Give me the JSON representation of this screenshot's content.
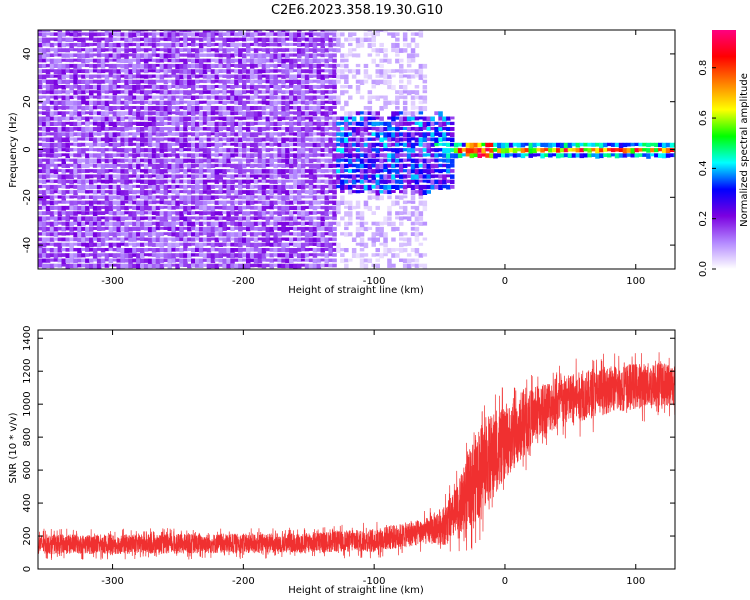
{
  "title": "C2E6.2023.358.19.30.G10",
  "chart_data": [
    {
      "type": "heatmap",
      "name": "spectrogram",
      "xlabel": "Height of straight line (km)",
      "ylabel": "Frequency (Hz)",
      "xlim": [
        -357,
        130
      ],
      "ylim": [
        -50,
        50
      ],
      "xticks": [
        -300,
        -200,
        -100,
        0,
        100
      ],
      "yticks": [
        -40,
        -20,
        0,
        20,
        40
      ],
      "grid": false,
      "regions": [
        {
          "x_range": [
            -357,
            -130
          ],
          "freq_range": [
            -50,
            50
          ],
          "amplitude": "0.1-0.2",
          "pattern": "speckle"
        },
        {
          "x_range": [
            -130,
            -60
          ],
          "freq_range": [
            -50,
            50
          ],
          "amplitude": "0.02-0.12",
          "pattern": "speckle"
        },
        {
          "x_range": [
            -130,
            -40
          ],
          "freq_range": [
            -20,
            12
          ],
          "amplitude": "0.2-0.4",
          "pattern": "scattered signal"
        },
        {
          "x_range": [
            -40,
            130
          ],
          "freq_range": [
            -3,
            3
          ],
          "amplitude": "0.4-0.9",
          "pattern": "narrow carrier line"
        }
      ],
      "colorbar": {
        "label": "Normalized spectral amplitude",
        "range": [
          0,
          0.95
        ],
        "ticks": [
          0.0,
          0.2,
          0.4,
          0.6,
          0.8
        ],
        "colors": [
          "#ffffff",
          "#b388ff",
          "#7b00e0",
          "#0000ff",
          "#00ffff",
          "#00ff00",
          "#ffff00",
          "#ff8000",
          "#ff0000",
          "#ff0080"
        ]
      }
    },
    {
      "type": "line",
      "name": "snr",
      "xlabel": "Height of straight line (km)",
      "ylabel": "SNR (10 * v/v)",
      "xlim": [
        -357,
        130
      ],
      "ylim": [
        0,
        1450
      ],
      "xticks": [
        -300,
        -200,
        -100,
        0,
        100
      ],
      "yticks": [
        0,
        200,
        400,
        600,
        800,
        1000,
        1200,
        1400
      ],
      "color": "#f03030",
      "grid": false,
      "trend": {
        "x": [
          -357,
          -300,
          -200,
          -150,
          -100,
          -80,
          -60,
          -45,
          -35,
          -25,
          -15,
          -5,
          0,
          10,
          20,
          30,
          40,
          50,
          60,
          70,
          80,
          90,
          100,
          110,
          120,
          130
        ],
        "y": [
          150,
          150,
          155,
          160,
          175,
          200,
          230,
          270,
          360,
          520,
          650,
          720,
          760,
          830,
          920,
          980,
          1010,
          1030,
          1050,
          1070,
          1090,
          1100,
          1110,
          1115,
          1120,
          1120
        ]
      },
      "noise_band": {
        "x": [
          -357,
          -150,
          -100,
          -60,
          -40,
          -30,
          -20,
          -10,
          0,
          20,
          60,
          100,
          130
        ],
        "halfwidth": [
          60,
          60,
          70,
          80,
          140,
          220,
          280,
          260,
          220,
          170,
          150,
          140,
          130
        ]
      },
      "samples": 5000
    }
  ]
}
